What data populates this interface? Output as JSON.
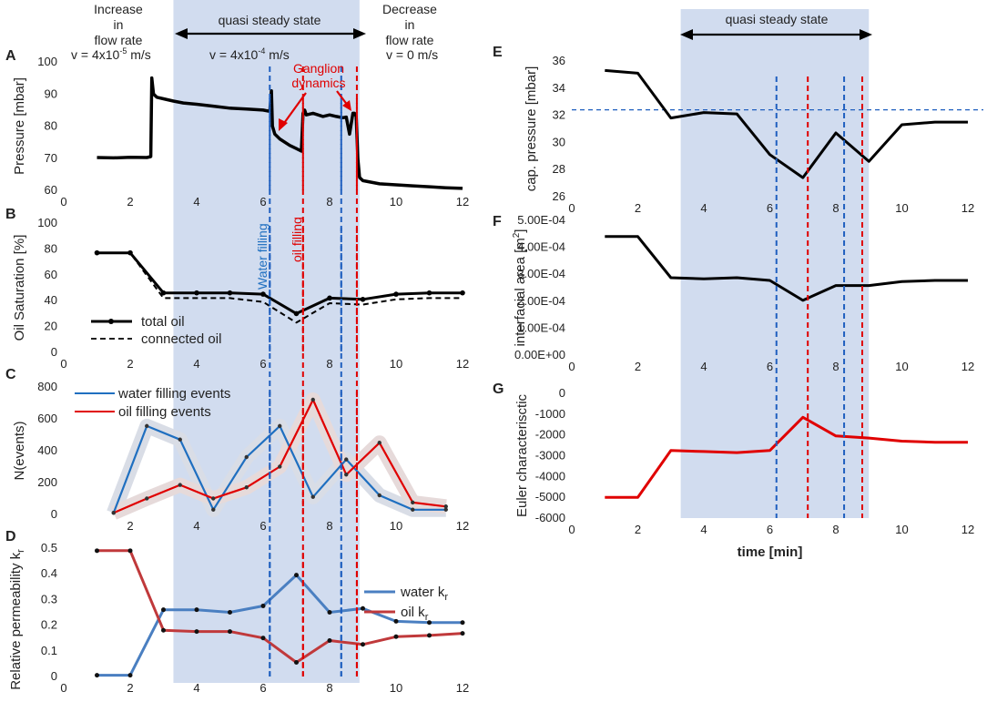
{
  "header": {
    "increase_line1": "Increase",
    "increase_line2": "in",
    "increase_line3": "flow rate",
    "decrease_line1": "Decrease",
    "decrease_line2": "in",
    "decrease_line3": "flow rate",
    "quasi_left": "quasi steady state",
    "quasi_right": "quasi steady state",
    "v_increase_base": "v = 4x10",
    "v_increase_exp": "-5",
    "v_increase_unit": " m/s",
    "v_steady_base": "v = 4x10",
    "v_steady_exp": "-4",
    "v_steady_unit": " m/s",
    "v_decrease": "v = 0 m/s",
    "ganglion_line1": "Ganglion",
    "ganglion_line2": "dynamics",
    "water_filling": "Water filling",
    "oil_filling": "oil filling"
  },
  "colors": {
    "shade": "#c9d6ec",
    "black": "#000000",
    "red": "#e00000",
    "blue": "#1f6fc0",
    "blue_kr": "#4a7fc1",
    "red_kr": "#c0393b",
    "dash_blue": "#1f5fbf",
    "dash_red": "#e00000"
  },
  "chart_data": [
    {
      "panel": "A",
      "type": "line",
      "xlim": [
        0,
        12
      ],
      "ylim": [
        60,
        100
      ],
      "xticks": [
        0,
        2,
        4,
        6,
        8,
        10,
        12
      ],
      "yticks": [
        60,
        70,
        80,
        90,
        100
      ],
      "ylabel": "Pressure [mbar]",
      "series": [
        {
          "name": "pressure",
          "color": "#000000",
          "x": [
            1.0,
            1.5,
            2.0,
            2.5,
            2.62,
            2.65,
            2.7,
            2.8,
            3.0,
            3.3,
            3.6,
            4.0,
            4.5,
            5.0,
            5.5,
            6.0,
            6.2,
            6.25,
            6.28,
            6.35,
            6.5,
            6.8,
            7.0,
            7.15,
            7.2,
            7.25,
            7.3,
            7.5,
            7.8,
            8.0,
            8.2,
            8.4,
            8.5,
            8.6,
            8.7,
            8.75,
            8.8,
            8.85,
            8.9,
            9.0,
            9.5,
            10.0,
            10.5,
            11.0,
            11.5,
            12.0
          ],
          "y": [
            70.2,
            70.1,
            70.3,
            70.2,
            70.5,
            95.0,
            90.0,
            89.0,
            88.5,
            87.8,
            87.2,
            86.8,
            86.2,
            85.6,
            85.3,
            85.0,
            84.6,
            91.0,
            80.0,
            77.5,
            76.0,
            74.0,
            73.0,
            72.2,
            84.0,
            85.0,
            83.5,
            84.0,
            83.0,
            83.5,
            83.0,
            82.6,
            82.8,
            77.5,
            84.0,
            84.0,
            83.0,
            70.0,
            64.0,
            63.0,
            62.0,
            61.7,
            61.4,
            61.1,
            60.8,
            60.6
          ]
        }
      ]
    },
    {
      "panel": "B",
      "type": "line",
      "xlim": [
        0,
        12
      ],
      "ylim": [
        0,
        100
      ],
      "xticks": [
        0,
        2,
        4,
        6,
        8,
        10,
        12
      ],
      "yticks": [
        0,
        20,
        40,
        60,
        80,
        100
      ],
      "ylabel": "Oil Saturation [%]",
      "legend": "bottom-left",
      "series": [
        {
          "name": "total oil",
          "color": "#000000",
          "style": "solid-markers",
          "x": [
            1,
            2,
            3,
            4,
            5,
            6,
            7,
            8,
            9,
            10,
            11,
            12
          ],
          "y": [
            77,
            77,
            46,
            46,
            46,
            45,
            30,
            42,
            41,
            45,
            46,
            46
          ]
        },
        {
          "name": "connected oil",
          "color": "#000000",
          "style": "dashed",
          "x": [
            1,
            2,
            3,
            4,
            5,
            6,
            7,
            8,
            9,
            10,
            11,
            12
          ],
          "y": [
            77,
            77,
            42,
            42,
            42,
            39,
            23,
            38,
            37,
            41,
            42,
            42
          ]
        }
      ]
    },
    {
      "panel": "C",
      "type": "line",
      "xlim": [
        0,
        12
      ],
      "ylim": [
        0,
        800
      ],
      "xticks": [
        2,
        4,
        6,
        8,
        10,
        12
      ],
      "yticks": [
        0,
        200,
        400,
        600,
        800
      ],
      "ylabel": "N(events)",
      "legend": "top-left",
      "series": [
        {
          "name": "water filling events",
          "color": "#1f6fc0",
          "x": [
            1.5,
            2.5,
            3.5,
            4.5,
            5.5,
            6.5,
            7.5,
            8.5,
            9.5,
            10.5,
            11.5
          ],
          "y": [
            10,
            555,
            470,
            30,
            360,
            555,
            110,
            345,
            120,
            30,
            30
          ]
        },
        {
          "name": "oil filling events",
          "color": "#e00000",
          "x": [
            1.5,
            2.5,
            3.5,
            4.5,
            5.5,
            6.5,
            7.5,
            8.5,
            9.5,
            10.5,
            11.5
          ],
          "y": [
            10,
            100,
            185,
            100,
            170,
            300,
            720,
            250,
            450,
            75,
            50
          ]
        }
      ]
    },
    {
      "panel": "D",
      "type": "line",
      "xlim": [
        0,
        12
      ],
      "ylim": [
        0,
        0.5
      ],
      "xticks": [
        0,
        2,
        4,
        6,
        8,
        10,
        12
      ],
      "yticks": [
        0,
        0.1,
        0.2,
        0.3,
        0.4,
        0.5
      ],
      "ylabel_base": "Relative permeability k",
      "ylabel_sub": "r",
      "legend": "top-right",
      "series": [
        {
          "name_base": "water  k",
          "name_sub": "r",
          "color": "#4a7fc1",
          "x": [
            1,
            2,
            3,
            4,
            5,
            6,
            7,
            8,
            9,
            10,
            11,
            12
          ],
          "y": [
            0.005,
            0.005,
            0.26,
            0.26,
            0.25,
            0.275,
            0.395,
            0.25,
            0.265,
            0.215,
            0.21,
            0.21
          ]
        },
        {
          "name_base": "oil  k",
          "name_sub": "r",
          "color": "#c0393b",
          "x": [
            1,
            2,
            3,
            4,
            5,
            6,
            7,
            8,
            9,
            10,
            11,
            12
          ],
          "y": [
            0.49,
            0.49,
            0.18,
            0.175,
            0.175,
            0.15,
            0.055,
            0.14,
            0.125,
            0.155,
            0.16,
            0.168
          ]
        }
      ]
    },
    {
      "panel": "E",
      "type": "line",
      "xlim": [
        0,
        12
      ],
      "ylim": [
        26,
        36
      ],
      "xticks": [
        0,
        2,
        4,
        6,
        8,
        10,
        12
      ],
      "yticks": [
        26,
        28,
        30,
        32,
        34,
        36
      ],
      "ylabel": "cap. pressure [mbar]",
      "reference_line": 32.4,
      "series": [
        {
          "name": "capillary pressure",
          "color": "#000000",
          "x": [
            1,
            2,
            3,
            4,
            5,
            6,
            7,
            8,
            9,
            10,
            11,
            12
          ],
          "y": [
            35.3,
            35.1,
            31.8,
            32.2,
            32.1,
            29.1,
            27.4,
            30.7,
            28.6,
            31.3,
            31.5,
            31.5
          ]
        }
      ]
    },
    {
      "panel": "F",
      "type": "line",
      "xlim": [
        0,
        12
      ],
      "ylim": [
        0,
        0.0005
      ],
      "xticks": [
        0,
        2,
        4,
        6,
        8,
        10,
        12
      ],
      "yticks": [
        0,
        0.0001,
        0.0002,
        0.0003,
        0.0004,
        0.0005
      ],
      "ytick_labels": [
        "0.00E+00",
        "1.00E-04",
        "2.00E-04",
        "3.00E-04",
        "4.00E-04",
        "5.00E-04"
      ],
      "ylabel_base": "interfacial area [m",
      "ylabel_sup": "2",
      "ylabel_end": "]",
      "series": [
        {
          "name": "interfacial area",
          "color": "#000000",
          "x": [
            1,
            2,
            3,
            4,
            5,
            6,
            7,
            8,
            9,
            10,
            11,
            12
          ],
          "y": [
            0.00044,
            0.00044,
            0.000287,
            0.000283,
            0.000287,
            0.000277,
            0.000203,
            0.000258,
            0.000258,
            0.000273,
            0.000277,
            0.000277
          ]
        }
      ]
    },
    {
      "panel": "G",
      "type": "line",
      "xlim": [
        0,
        12
      ],
      "ylim": [
        -6000,
        0
      ],
      "xticks": [
        0,
        2,
        4,
        6,
        8,
        10,
        12
      ],
      "yticks": [
        -6000,
        -5000,
        -4000,
        -3000,
        -2000,
        -1000,
        0
      ],
      "ylabel": "Euler characterisctic",
      "xlabel": "time [min]",
      "series": [
        {
          "name": "euler characteristic",
          "color": "#e00000",
          "x": [
            1,
            2,
            3,
            4,
            5,
            6,
            7,
            8,
            9,
            10,
            11,
            12
          ],
          "y": [
            -5000,
            -5000,
            -2750,
            -2800,
            -2850,
            -2750,
            -1150,
            -2050,
            -2150,
            -2300,
            -2350,
            -2350
          ]
        }
      ]
    }
  ],
  "markers": {
    "left_shade": [
      3.3,
      8.9
    ],
    "left_blue_dashes": [
      6.2,
      8.35
    ],
    "left_red_dashes": [
      7.2,
      8.82
    ],
    "right_shade": [
      3.3,
      9.0
    ],
    "right_blue_dashes": [
      6.2,
      8.25
    ],
    "right_red_dashes": [
      7.15,
      8.8
    ]
  }
}
